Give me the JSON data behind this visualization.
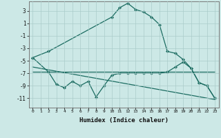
{
  "xlabel": "Humidex (Indice chaleur)",
  "ylabel": "",
  "background_color": "#cce8e6",
  "line_color": "#1a6b60",
  "grid_color": "#aaccca",
  "xlim": [
    -0.5,
    23.5
  ],
  "ylim": [
    -12.5,
    4.5
  ],
  "yticks": [
    3,
    1,
    -1,
    -3,
    -5,
    -7,
    -9,
    -11
  ],
  "xticks": [
    0,
    1,
    2,
    3,
    4,
    5,
    6,
    7,
    8,
    9,
    10,
    11,
    12,
    13,
    14,
    15,
    16,
    17,
    18,
    19,
    20,
    21,
    22,
    23
  ],
  "series1": {
    "x": [
      0,
      2,
      10,
      11,
      12,
      13,
      14,
      15,
      16,
      17,
      18,
      19,
      20,
      21,
      22,
      23
    ],
    "y": [
      -4.5,
      -3.5,
      2.0,
      3.5,
      4.2,
      3.2,
      2.8,
      2.0,
      0.8,
      -3.5,
      -3.8,
      -4.8,
      -6.2,
      -8.5,
      -9.0,
      -11.0
    ]
  },
  "series2": {
    "x": [
      0,
      2,
      3,
      4,
      5,
      6,
      7,
      8,
      9,
      10,
      11,
      12,
      13,
      14,
      15,
      16,
      17,
      18,
      19,
      20,
      21,
      22,
      23
    ],
    "y": [
      -4.5,
      -6.8,
      -8.8,
      -9.3,
      -8.3,
      -9.0,
      -8.3,
      -10.8,
      -9.0,
      -7.3,
      -7.0,
      -7.0,
      -7.0,
      -7.0,
      -7.0,
      -7.0,
      -6.8,
      -6.0,
      -5.2,
      -6.2,
      -8.5,
      -9.0,
      -11.0
    ]
  },
  "series3": {
    "x": [
      0,
      23
    ],
    "y": [
      -6.8,
      -6.8
    ]
  },
  "series4": {
    "x": [
      0,
      23
    ],
    "y": [
      -6.0,
      -11.2
    ]
  }
}
